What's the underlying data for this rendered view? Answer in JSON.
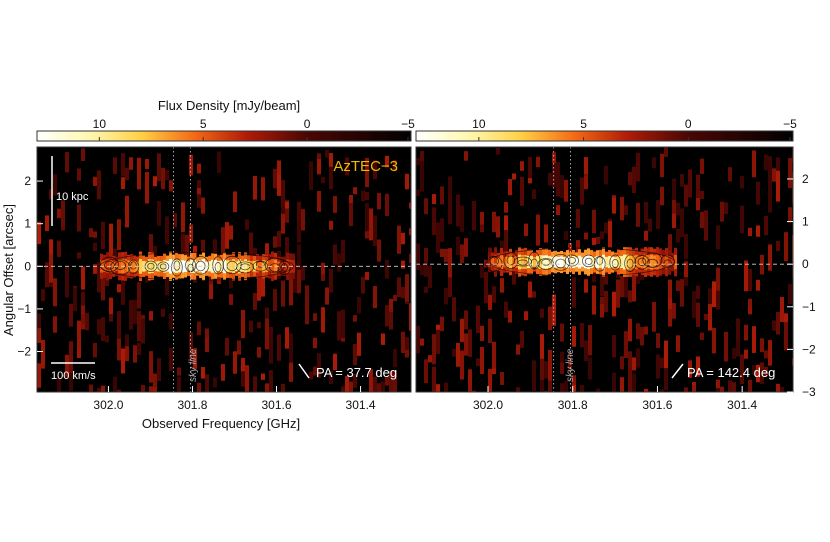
{
  "colorbar": {
    "title": "Flux Density [mJy/beam]",
    "ticks": [
      "10",
      "5",
      "0",
      "−5"
    ]
  },
  "axes": {
    "xlabel": "Observed Frequency [GHz]",
    "ylabel": "Angular Offset [arcsec]"
  },
  "annotations": {
    "object": "AzTEC−3",
    "object_color": "#f5b800",
    "scale_kpc": "10 kpc",
    "scale_kms": "100 km/s",
    "sky_line": "sky line"
  },
  "panels": [
    {
      "pa_label": "PA = 37.7 deg"
    },
    {
      "pa_label": "PA = 142.4 deg"
    }
  ],
  "chart_data": [
    {
      "type": "heatmap",
      "title": "AzTEC−3",
      "xlabel": "Observed Frequency [GHz]",
      "ylabel": "Angular Offset [arcsec]",
      "x_ticks": [
        302.0,
        301.8,
        301.6,
        301.4
      ],
      "y_ticks": [
        -2,
        -1,
        0,
        1,
        2
      ],
      "xlim": [
        302.17,
        301.28
      ],
      "ylim": [
        -2.95,
        2.8
      ],
      "colorbar_ticks": [
        10,
        5,
        0,
        -5
      ],
      "colorbar_range": [
        13,
        -5
      ],
      "sky_line_ghz": [
        301.845,
        301.805
      ],
      "emission": {
        "x_range": [
          302.02,
          301.56
        ],
        "offset": 0.0,
        "peak": 13
      },
      "pa_deg": 37.7
    },
    {
      "type": "heatmap",
      "ylabel": "Angular Offset [arcsec]",
      "x_ticks": [
        302.0,
        301.8,
        301.6,
        301.4
      ],
      "y_ticks": [
        -3,
        -2,
        -1,
        0,
        1,
        2
      ],
      "xlim": [
        302.17,
        301.28
      ],
      "ylim": [
        -3.0,
        2.75
      ],
      "colorbar_ticks": [
        10,
        5,
        0,
        -5
      ],
      "colorbar_range": [
        13,
        -5
      ],
      "sky_line_ghz": [
        301.845,
        301.805
      ],
      "emission": {
        "x_range": [
          302.0,
          301.56
        ],
        "offset": 0.05,
        "peak": 13
      },
      "pa_deg": 142.4
    }
  ]
}
